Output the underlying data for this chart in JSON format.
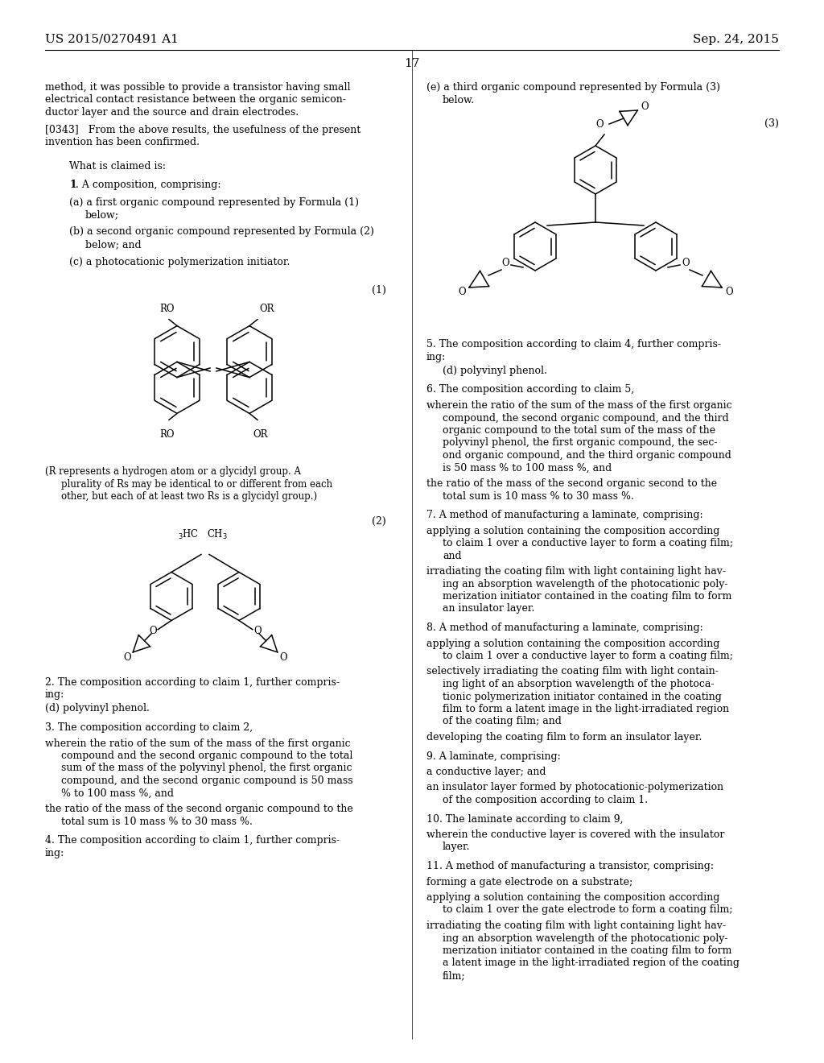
{
  "background_color": "#ffffff",
  "header_left": "US 2015/0270491 A1",
  "header_right": "Sep. 24, 2015",
  "page_number": "17"
}
